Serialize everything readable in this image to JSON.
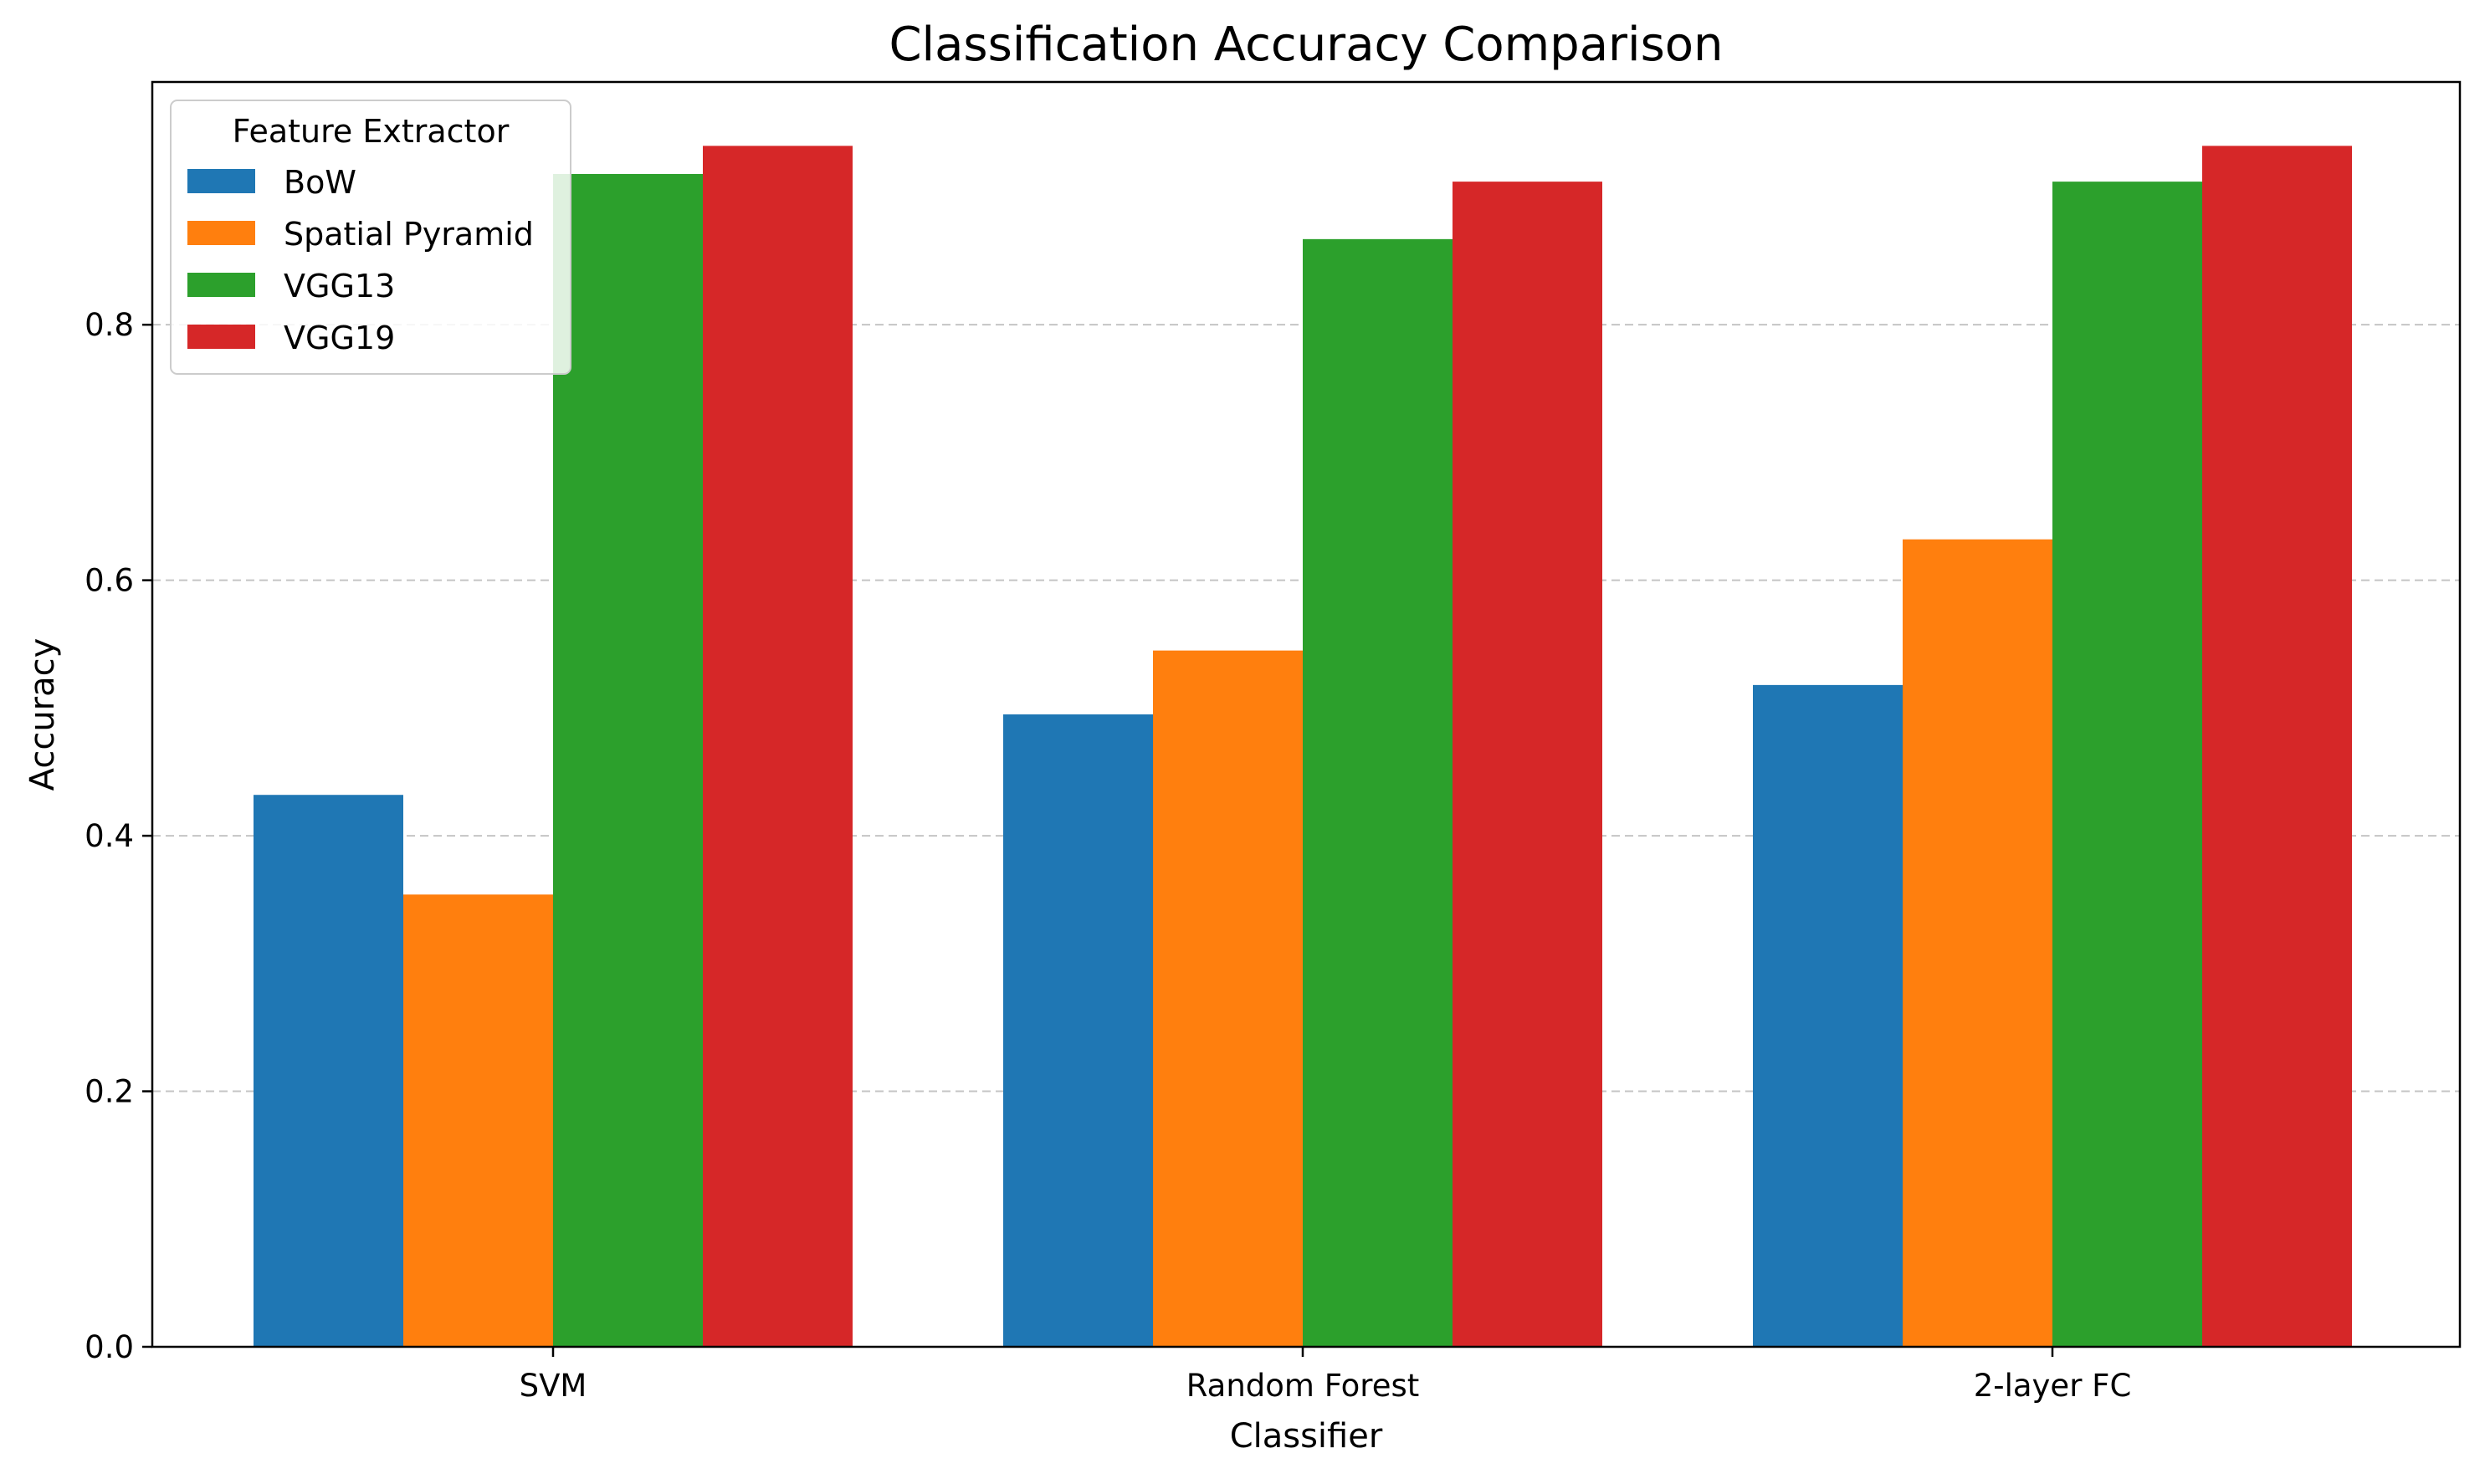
{
  "chart_data": {
    "type": "bar",
    "title": "Classification Accuracy Comparison",
    "xlabel": "Classifier",
    "ylabel": "Accuracy",
    "categories": [
      "SVM",
      "Random Forest",
      "2-layer FC"
    ],
    "series": [
      {
        "name": "BoW",
        "color": "#1f77b4",
        "values": [
          0.432,
          0.495,
          0.518
        ]
      },
      {
        "name": "Spatial Pyramid",
        "color": "#ff7f0e",
        "values": [
          0.354,
          0.545,
          0.632
        ]
      },
      {
        "name": "VGG13",
        "color": "#2ca02c",
        "values": [
          0.918,
          0.867,
          0.912
        ]
      },
      {
        "name": "VGG19",
        "color": "#d62728",
        "values": [
          0.94,
          0.912,
          0.94
        ]
      }
    ],
    "ylim": [
      0,
      0.99
    ],
    "yticks": [
      0.0,
      0.2,
      0.4,
      0.6,
      0.8
    ],
    "ytick_labels": [
      "0.0",
      "0.2",
      "0.4",
      "0.6",
      "0.8"
    ],
    "grid": "y-dashed",
    "legend": {
      "title": "Feature Extractor",
      "placement": "top-left"
    }
  }
}
